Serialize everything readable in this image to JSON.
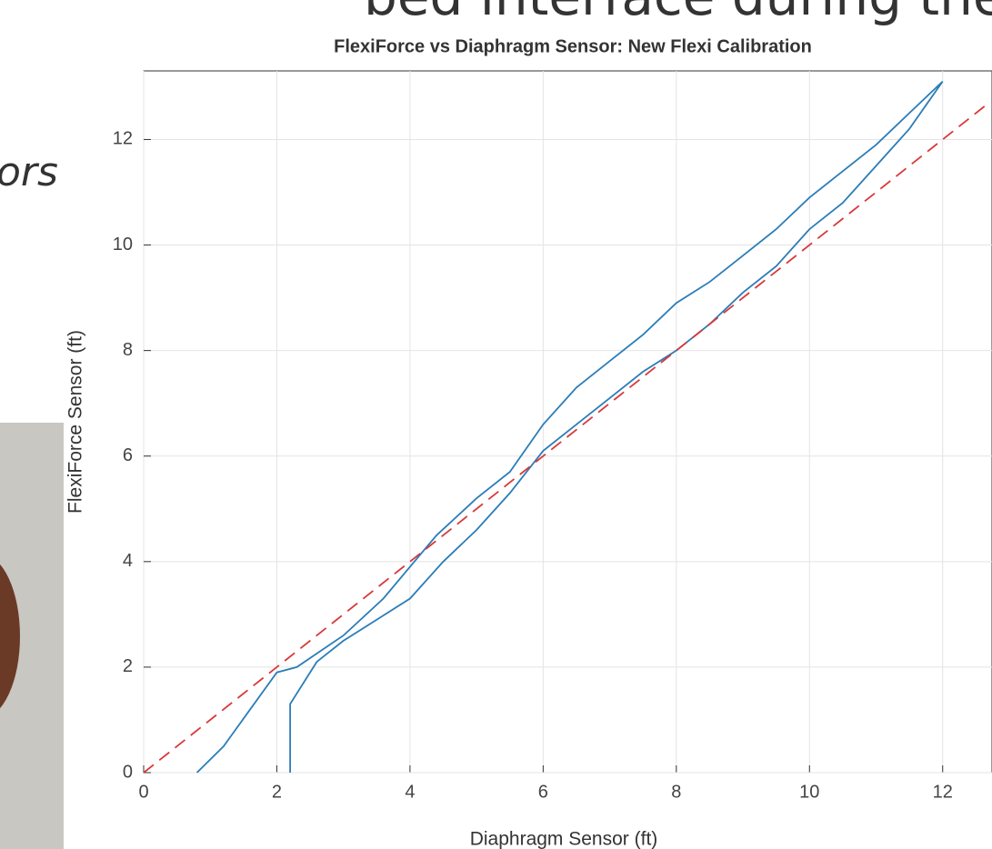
{
  "background": {
    "heading": "bed interface during the deployment",
    "fragment": "ors"
  },
  "chart_data": {
    "type": "line",
    "title": "FlexiForce vs Diaphragm Sensor: New Flexi Calibration",
    "xlabel": "Diaphragm Sensor (ft)",
    "ylabel": "FlexiForce Sensor (ft)",
    "xlim": [
      0,
      12.7
    ],
    "ylim": [
      0,
      13.3
    ],
    "xticks": [
      0,
      2,
      4,
      6,
      8,
      10,
      12
    ],
    "yticks": [
      0,
      2,
      4,
      6,
      8,
      10,
      12
    ],
    "grid": true,
    "series": [
      {
        "color": "#2a7db8",
        "linestyle": "solid",
        "x": [
          0.8,
          1.2,
          1.6,
          2.0,
          2.3,
          3.0,
          3.6,
          4.0,
          4.4,
          5.0,
          5.5,
          6.0,
          6.5,
          7.0,
          7.5,
          8.0,
          8.5,
          9.0,
          9.5,
          10.0,
          10.5,
          11.0,
          11.5,
          12.0,
          12.0,
          11.5,
          11.0,
          10.5,
          10.0,
          9.5,
          9.0,
          8.5,
          8.0,
          7.5,
          7.0,
          6.5,
          6.0,
          5.5,
          5.0,
          4.5,
          4.0,
          3.5,
          3.0,
          2.6,
          2.2,
          2.2
        ],
        "values": [
          0,
          0.5,
          1.2,
          1.9,
          2.0,
          2.6,
          3.3,
          3.9,
          4.5,
          5.2,
          5.7,
          6.6,
          7.3,
          7.8,
          8.3,
          8.9,
          9.3,
          9.8,
          10.3,
          10.9,
          11.4,
          11.9,
          12.5,
          13.1,
          13.1,
          12.2,
          11.5,
          10.8,
          10.3,
          9.6,
          9.1,
          8.5,
          8.0,
          7.6,
          7.1,
          6.6,
          6.1,
          5.3,
          4.6,
          4.0,
          3.3,
          2.9,
          2.5,
          2.1,
          1.3,
          0
        ]
      },
      {
        "color": "#d9383a",
        "linestyle": "dashed",
        "x": [
          0,
          12.7
        ],
        "values": [
          0,
          12.7
        ]
      }
    ]
  }
}
